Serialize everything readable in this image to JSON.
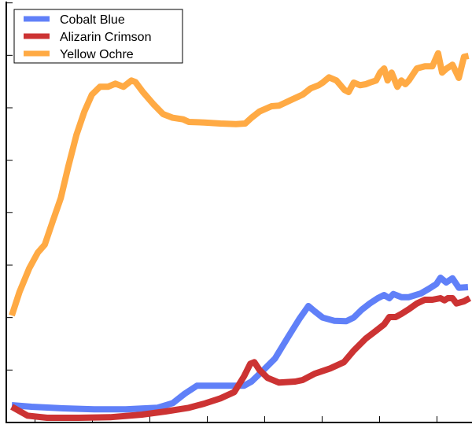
{
  "chart_data": {
    "type": "line",
    "title": "",
    "xlabel": "",
    "ylabel": "",
    "xlim": [
      0,
      81.1
    ],
    "ylim": [
      0,
      8.01
    ],
    "xticks": [
      5,
      15,
      25,
      35,
      45,
      55,
      65,
      75
    ],
    "yticks": [
      1,
      2,
      3,
      4,
      5,
      6,
      7,
      8
    ],
    "grid": false,
    "legend_position": "top-left",
    "series": [
      {
        "name": "Cobalt Blue",
        "color": "#6080f8",
        "x": [
          0.96,
          4.4,
          9.9,
          15.3,
          20.8,
          26.3,
          29.0,
          31.1,
          33.2,
          35.9,
          38.6,
          41.4,
          42.7,
          44.8,
          46.8,
          48.9,
          51.0,
          52.6,
          53.7,
          55.1,
          57.1,
          59.2,
          60.5,
          61.9,
          63.3,
          64.7,
          65.8,
          66.7,
          67.4,
          68.8,
          70.1,
          72.2,
          73.6,
          74.9,
          75.6,
          76.6,
          77.7,
          78.8,
          80.4
        ],
        "y": [
          0.33,
          0.3,
          0.27,
          0.25,
          0.25,
          0.28,
          0.37,
          0.55,
          0.7,
          0.7,
          0.7,
          0.7,
          0.78,
          1.0,
          1.22,
          1.6,
          1.97,
          2.22,
          2.12,
          2.0,
          1.94,
          1.93,
          2.0,
          2.15,
          2.27,
          2.37,
          2.43,
          2.37,
          2.45,
          2.39,
          2.39,
          2.46,
          2.55,
          2.64,
          2.76,
          2.67,
          2.75,
          2.57,
          2.58
        ]
      },
      {
        "name": "Alizarin Crimson",
        "color": "#cc3333",
        "x": [
          0.96,
          3.7,
          7.1,
          12.6,
          18.1,
          23.6,
          27.7,
          31.8,
          34.5,
          37.3,
          39.7,
          41.4,
          42.5,
          43.2,
          44.1,
          45.5,
          47.5,
          50.3,
          51.6,
          53.7,
          56.4,
          58.8,
          60.5,
          62.6,
          64.4,
          65.8,
          66.7,
          67.8,
          68.8,
          70.1,
          71.5,
          72.9,
          74.2,
          75.6,
          76.3,
          76.9,
          77.7,
          78.4,
          79.7,
          80.7
        ],
        "y": [
          0.3,
          0.13,
          0.09,
          0.09,
          0.1,
          0.15,
          0.21,
          0.28,
          0.36,
          0.46,
          0.58,
          0.88,
          1.12,
          1.15,
          1.0,
          0.85,
          0.76,
          0.78,
          0.81,
          0.93,
          1.03,
          1.15,
          1.37,
          1.6,
          1.75,
          1.87,
          2.01,
          2.01,
          2.07,
          2.16,
          2.27,
          2.34,
          2.34,
          2.37,
          2.33,
          2.37,
          2.37,
          2.27,
          2.31,
          2.37
        ]
      },
      {
        "name": "Yellow Ochre",
        "color": "#ffaa44",
        "x": [
          0.96,
          2.3,
          4.0,
          5.5,
          6.7,
          8.1,
          9.5,
          10.8,
          12.2,
          13.6,
          14.9,
          16.3,
          17.7,
          19.0,
          20.4,
          21.8,
          22.5,
          23.8,
          25.6,
          27.3,
          29.0,
          30.8,
          31.8,
          34.5,
          37.3,
          40.0,
          41.6,
          42.7,
          44.1,
          46.2,
          47.5,
          49.6,
          51.6,
          53.0,
          54.4,
          55.1,
          56.2,
          57.5,
          58.9,
          59.6,
          60.5,
          61.6,
          62.6,
          63.3,
          64.4,
          65.1,
          65.8,
          66.4,
          67.1,
          68.1,
          68.8,
          69.5,
          70.1,
          71.5,
          72.9,
          74.2,
          75.2,
          75.9,
          76.7,
          77.7,
          78.8,
          79.7,
          80.5
        ],
        "y": [
          2.04,
          2.49,
          2.94,
          3.24,
          3.39,
          3.84,
          4.28,
          4.88,
          5.48,
          5.93,
          6.25,
          6.4,
          6.4,
          6.46,
          6.4,
          6.52,
          6.49,
          6.3,
          6.07,
          5.88,
          5.81,
          5.78,
          5.73,
          5.72,
          5.7,
          5.69,
          5.7,
          5.81,
          5.93,
          6.03,
          6.04,
          6.15,
          6.25,
          6.37,
          6.43,
          6.48,
          6.58,
          6.52,
          6.34,
          6.3,
          6.48,
          6.43,
          6.45,
          6.48,
          6.52,
          6.67,
          6.75,
          6.52,
          6.67,
          6.4,
          6.52,
          6.45,
          6.52,
          6.75,
          6.79,
          6.79,
          7.04,
          6.67,
          6.75,
          6.82,
          6.57,
          6.97,
          6.99
        ]
      }
    ]
  }
}
